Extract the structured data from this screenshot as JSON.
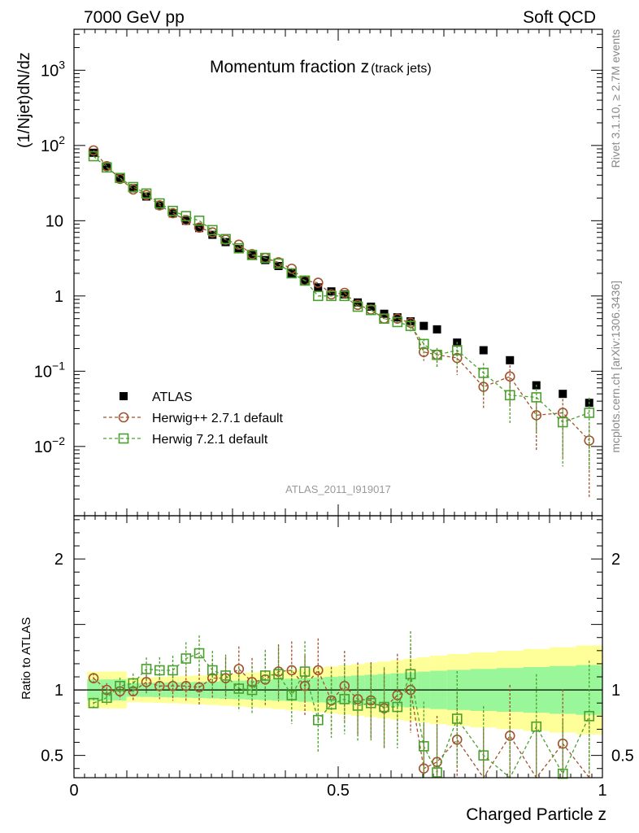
{
  "header": {
    "left": "7000 GeV pp",
    "right": "Soft QCD"
  },
  "side": {
    "rivet": "Rivet 3.1.10, ≥ 2.7M events",
    "mcplots": "mcplots.cern.ch [arXiv:1306.3436]"
  },
  "chart_data": {
    "type": "scatter",
    "title": "Momentum fraction z",
    "title_sub": "(track jets)",
    "analysis": "ATLAS_2011_I919017",
    "ylabel_top": "(1/Njet)dN/dz",
    "ylabel_bottom": "Ratio to ATLAS",
    "xlabel": "Charged Particle z",
    "xlim": [
      0,
      1
    ],
    "ylim_top": [
      0.0012,
      3500
    ],
    "ylog": true,
    "ylim_bottom": [
      0.33,
      2.33
    ],
    "x_ticks": [
      "0",
      "0.5",
      "1"
    ],
    "y_ticks_top": [
      {
        "base": "10",
        "exp": "−2",
        "v": 0.01
      },
      {
        "base": "10",
        "exp": "−1",
        "v": 0.1
      },
      {
        "base": "1",
        "exp": "",
        "v": 1
      },
      {
        "base": "10",
        "exp": "",
        "v": 10
      },
      {
        "base": "10",
        "exp": "2",
        "v": 100
      },
      {
        "base": "10",
        "exp": "3",
        "v": 1000
      }
    ],
    "y_ticks_bottom": [
      "0.5",
      "1",
      "2"
    ],
    "legend_position": "bottom-left",
    "x": [
      0.037,
      0.062,
      0.087,
      0.112,
      0.137,
      0.162,
      0.187,
      0.212,
      0.237,
      0.262,
      0.287,
      0.312,
      0.337,
      0.362,
      0.387,
      0.412,
      0.437,
      0.462,
      0.487,
      0.512,
      0.537,
      0.562,
      0.587,
      0.612,
      0.637,
      0.662,
      0.687,
      0.725,
      0.775,
      0.825,
      0.875,
      0.925,
      0.975
    ],
    "series": [
      {
        "name": "ATLAS",
        "color": "#000000",
        "marker": "filled-square",
        "values": [
          80,
          53,
          37,
          27,
          21,
          16,
          12.5,
          10,
          8,
          6.5,
          5.2,
          4.2,
          3.5,
          3.0,
          2.5,
          2.0,
          1.6,
          1.3,
          1.15,
          1.05,
          0.82,
          0.72,
          0.58,
          0.52,
          0.46,
          0.4,
          0.36,
          0.24,
          0.19,
          0.14,
          0.065,
          0.05,
          0.038
        ]
      },
      {
        "name": "Herwig++ 2.7.1 default",
        "color": "#a0522d",
        "marker": "open-circle",
        "values": [
          86,
          53,
          36,
          26,
          22,
          16,
          12.6,
          10.2,
          8.1,
          7.0,
          5.6,
          4.8,
          3.6,
          3.2,
          2.8,
          2.3,
          1.6,
          1.5,
          1.05,
          1.1,
          0.76,
          0.66,
          0.5,
          0.5,
          0.44,
          0.18,
          0.165,
          0.15,
          0.062,
          0.085,
          0.026,
          0.028,
          0.012
        ],
        "ratio": [
          1.09,
          1.0,
          0.99,
          0.99,
          1.06,
          1.03,
          1.03,
          1.03,
          1.02,
          1.09,
          1.09,
          1.16,
          1.06,
          1.08,
          1.14,
          1.15,
          1.03,
          1.15,
          0.92,
          1.03,
          0.93,
          0.92,
          0.86,
          0.96,
          1.0,
          0.4,
          0.45,
          0.62,
          0.33,
          0.65,
          0.33,
          0.59,
          0.33
        ]
      },
      {
        "name": "Herwig 7.2.1 default",
        "color": "#4aa02c",
        "marker": "open-square",
        "values": [
          72,
          51,
          37,
          28,
          23,
          17,
          13.5,
          11.5,
          10,
          7.5,
          5.7,
          4.3,
          3.5,
          3.2,
          2.7,
          2.0,
          1.6,
          1.0,
          1.0,
          1.0,
          0.72,
          0.65,
          0.5,
          0.45,
          0.4,
          0.23,
          0.165,
          0.19,
          0.095,
          0.048,
          0.045,
          0.021,
          0.028
        ],
        "ratio": [
          0.9,
          0.94,
          1.03,
          1.05,
          1.16,
          1.15,
          1.15,
          1.24,
          1.28,
          1.15,
          1.11,
          1.01,
          1.0,
          1.11,
          1.12,
          0.96,
          1.14,
          0.77,
          0.89,
          0.93,
          0.88,
          0.9,
          0.87,
          0.87,
          1.12,
          0.57,
          0.37,
          0.78,
          0.5,
          0.33,
          0.72,
          0.36,
          0.8
        ]
      }
    ]
  }
}
